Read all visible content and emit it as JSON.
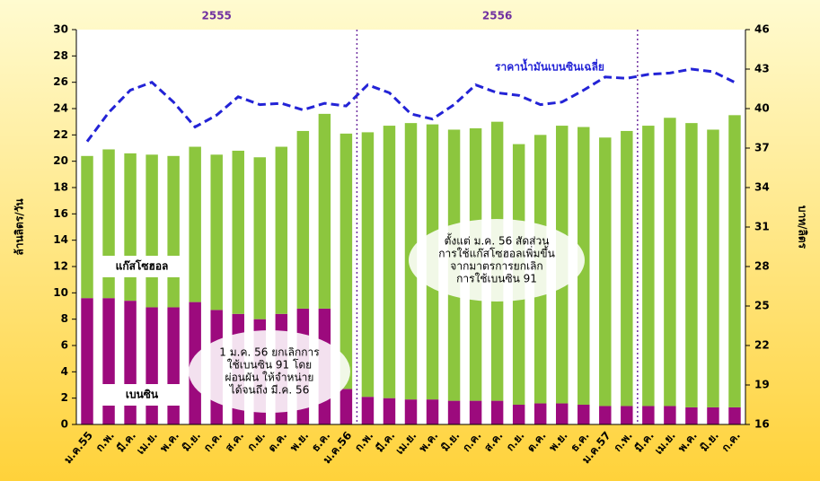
{
  "chart_data": {
    "type": "bar",
    "stacked": true,
    "year_labels": [
      "2555",
      "2556"
    ],
    "y_axis_label": "ล้านลิตร/วัน",
    "y2_axis_label": "บาท/ลิตร",
    "categories": [
      "ม.ค.55",
      "ก.พ.",
      "มี.ค.",
      "เม.ย.",
      "พ.ค.",
      "มิ.ย.",
      "ก.ค.",
      "ส.ค.",
      "ก.ย.",
      "ต.ค.",
      "พ.ย.",
      "ธ.ค.",
      "ม.ค.56",
      "ก.พ.",
      "มี.ค.",
      "เม.ย.",
      "พ.ค.",
      "มิ.ย.",
      "ก.ค.",
      "ส.ค.",
      "ก.ย.",
      "ต.ค.",
      "พ.ย.",
      "ธ.ค.",
      "ม.ค.57",
      "ก.พ.",
      "มี.ค.",
      "เม.ย.",
      "พ.ค.",
      "มิ.ย.",
      "ก.ค."
    ],
    "series": [
      {
        "name": "เบนซิน",
        "color": "#9c0a7d",
        "values": [
          9.6,
          9.6,
          9.4,
          8.9,
          8.9,
          9.3,
          8.7,
          8.4,
          8.0,
          8.4,
          8.8,
          8.8,
          2.7,
          2.1,
          2.0,
          1.9,
          1.9,
          1.8,
          1.8,
          1.8,
          1.5,
          1.6,
          1.6,
          1.5,
          1.4,
          1.4,
          1.4,
          1.4,
          1.3,
          1.3,
          1.3
        ]
      },
      {
        "name": "แก๊สโซฮอล",
        "color": "#8cc63e",
        "values": [
          10.8,
          11.3,
          11.2,
          11.6,
          11.5,
          11.8,
          11.8,
          12.4,
          12.3,
          12.7,
          13.5,
          14.8,
          19.4,
          20.1,
          20.7,
          21.0,
          20.9,
          20.6,
          20.7,
          21.2,
          19.8,
          20.4,
          21.1,
          21.1,
          20.4,
          20.9,
          21.3,
          21.9,
          21.6,
          21.1,
          22.2
        ]
      },
      {
        "name": "ราคาน้ำมันเบนซินเฉลี่ย",
        "color": "#2323d6",
        "type": "line",
        "axis": "y2",
        "values": [
          37.5,
          39.7,
          41.4,
          42.0,
          40.5,
          38.6,
          39.5,
          40.9,
          40.3,
          40.4,
          39.9,
          40.4,
          40.2,
          41.8,
          41.2,
          39.6,
          39.2,
          40.3,
          41.8,
          41.2,
          41.0,
          40.3,
          40.5,
          41.4,
          42.4,
          42.3,
          42.6,
          42.7,
          43.0,
          42.8,
          42.0
        ]
      }
    ],
    "ylim": [
      0,
      30
    ],
    "yticks": [
      0,
      2,
      4,
      6,
      8,
      10,
      12,
      14,
      16,
      18,
      20,
      22,
      24,
      26,
      28,
      30
    ],
    "y2lim": [
      16,
      46
    ],
    "y2ticks": [
      16,
      19,
      22,
      25,
      28,
      31,
      34,
      37,
      40,
      43,
      46
    ],
    "annotations": [
      {
        "lines": [
          "1 ม.ค. 56 ยกเลิกการ",
          "ใช้เบนซิน 91 โดย",
          "ผ่อนผัน ให้จำหน่าย",
          "ได้จนถึง มี.ค. 56"
        ]
      },
      {
        "lines": [
          "ตั้งแต่ ม.ค. 56 สัดส่วน",
          "การใช้แก๊สโซฮอลเพิ่มขึ้น",
          "จากมาตรการยกเลิก",
          "การใช้เบนซิน 91"
        ]
      }
    ]
  }
}
